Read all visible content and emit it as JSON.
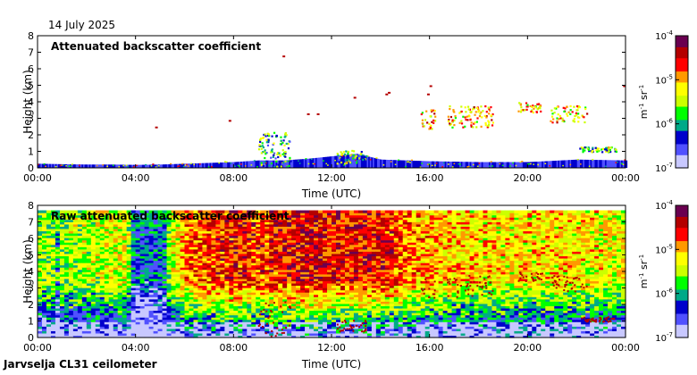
{
  "date_label": "14 July 2025",
  "footer": "Jarvselja CL31 ceilometer",
  "colors": {
    "colormap": [
      "#c8c8ff",
      "#5050ff",
      "#0000cc",
      "#00aa88",
      "#00ff00",
      "#ccff00",
      "#ffff00",
      "#ff9900",
      "#ff0000",
      "#b40000",
      "#6a0050"
    ],
    "ground_noise": "#e6e6e6"
  },
  "chart_data": [
    {
      "type": "heatmap",
      "title": "Attenuated backscatter coefficient",
      "xlabel": "Time (UTC)",
      "ylabel": "Height (km)",
      "x_ticks": [
        "00:00",
        "04:00",
        "08:00",
        "12:00",
        "16:00",
        "20:00",
        "00:00"
      ],
      "x_range_hours": [
        0,
        24
      ],
      "y_ticks": [
        "0",
        "1",
        "2",
        "3",
        "4",
        "5",
        "6",
        "7",
        "8"
      ],
      "ylim": [
        0,
        8
      ],
      "colorbar": {
        "ticks": [
          "10-4",
          "10-5",
          "10-6",
          "10-7"
        ],
        "tick_base": "10",
        "tick_exponents": [
          "-4",
          "-5",
          "-6",
          "-7"
        ],
        "label": "m-1 sr-1",
        "label_parts": [
          "m",
          "-1",
          " sr",
          "-1"
        ],
        "scale": "log",
        "range": [
          1e-07,
          0.0001
        ]
      },
      "boundary_layer": [
        [
          0,
          0.25
        ],
        [
          1,
          0.22
        ],
        [
          2,
          0.2
        ],
        [
          3,
          0.2
        ],
        [
          4,
          0.18
        ],
        [
          5,
          0.2
        ],
        [
          6,
          0.25
        ],
        [
          7,
          0.3
        ],
        [
          8,
          0.35
        ],
        [
          9,
          0.45
        ],
        [
          10,
          0.45
        ],
        [
          11,
          0.55
        ],
        [
          12,
          0.7
        ],
        [
          13,
          0.85
        ],
        [
          14,
          0.5
        ],
        [
          16,
          0.4
        ],
        [
          18,
          0.35
        ],
        [
          20,
          0.35
        ],
        [
          22,
          0.5
        ],
        [
          24,
          0.45
        ]
      ],
      "cloud_layers": [
        {
          "start": 9.0,
          "end": 10.3,
          "base": 0.1,
          "top": 2.2,
          "intensity": 0.6
        },
        {
          "start": 12.2,
          "end": 13.4,
          "base": 0.3,
          "top": 1.1,
          "intensity": 0.65
        },
        {
          "start": 15.6,
          "end": 16.2,
          "base": 2.4,
          "top": 3.6,
          "intensity": 0.85
        },
        {
          "start": 16.7,
          "end": 18.6,
          "base": 2.5,
          "top": 3.8,
          "intensity": 0.85
        },
        {
          "start": 19.6,
          "end": 20.6,
          "base": 3.4,
          "top": 4.0,
          "intensity": 0.85
        },
        {
          "start": 20.9,
          "end": 22.4,
          "base": 2.8,
          "top": 3.8,
          "intensity": 0.85
        },
        {
          "start": 22.1,
          "end": 23.6,
          "base": 1.0,
          "top": 1.3,
          "intensity": 0.65
        }
      ],
      "sparse_points": [
        [
          4.8,
          2.5
        ],
        [
          7.8,
          2.9
        ],
        [
          11.0,
          3.3
        ],
        [
          11.4,
          3.3
        ],
        [
          12.9,
          4.3
        ],
        [
          14.2,
          4.5
        ],
        [
          14.3,
          4.6
        ],
        [
          15.9,
          4.5
        ],
        [
          16.0,
          5.0
        ],
        [
          23.9,
          5.0
        ],
        [
          10.0,
          6.8
        ]
      ]
    },
    {
      "type": "heatmap",
      "title": "Raw attenuated backscatter coefficient",
      "xlabel": "Time (UTC)",
      "ylabel": "Height (km)",
      "x_ticks": [
        "00:00",
        "04:00",
        "08:00",
        "12:00",
        "16:00",
        "20:00",
        "00:00"
      ],
      "x_range_hours": [
        0,
        24
      ],
      "y_ticks": [
        "0",
        "1",
        "2",
        "3",
        "4",
        "5",
        "6",
        "7",
        "8"
      ],
      "ylim": [
        0,
        8
      ],
      "colorbar": {
        "ticks": [
          "10-4",
          "10-5",
          "10-6",
          "10-7"
        ],
        "tick_base": "10",
        "tick_exponents": [
          "-4",
          "-5",
          "-6",
          "-7"
        ],
        "label": "m-1 sr-1",
        "label_parts": [
          "m",
          "-1",
          " sr",
          "-1"
        ],
        "scale": "log",
        "range": [
          1e-07,
          0.0001
        ]
      },
      "data_top_km": 7.7,
      "noise_level": [
        [
          0,
          0.45
        ],
        [
          2,
          0.5
        ],
        [
          3.5,
          0.55
        ],
        [
          4,
          0.35
        ],
        [
          5,
          0.4
        ],
        [
          6,
          0.7
        ],
        [
          7,
          0.75
        ],
        [
          8,
          0.8
        ],
        [
          9,
          0.75
        ],
        [
          10,
          0.8
        ],
        [
          11,
          0.85
        ],
        [
          12,
          0.8
        ],
        [
          13,
          0.8
        ],
        [
          14,
          0.8
        ],
        [
          15,
          0.7
        ],
        [
          16,
          0.65
        ],
        [
          18,
          0.6
        ],
        [
          20,
          0.6
        ],
        [
          22,
          0.6
        ],
        [
          24,
          0.55
        ]
      ],
      "clear_bands": [
        {
          "start": 3.7,
          "end": 5.1,
          "level": 0.2
        },
        {
          "start": 0.6,
          "end": 0.9,
          "level": 0.25
        }
      ]
    }
  ]
}
